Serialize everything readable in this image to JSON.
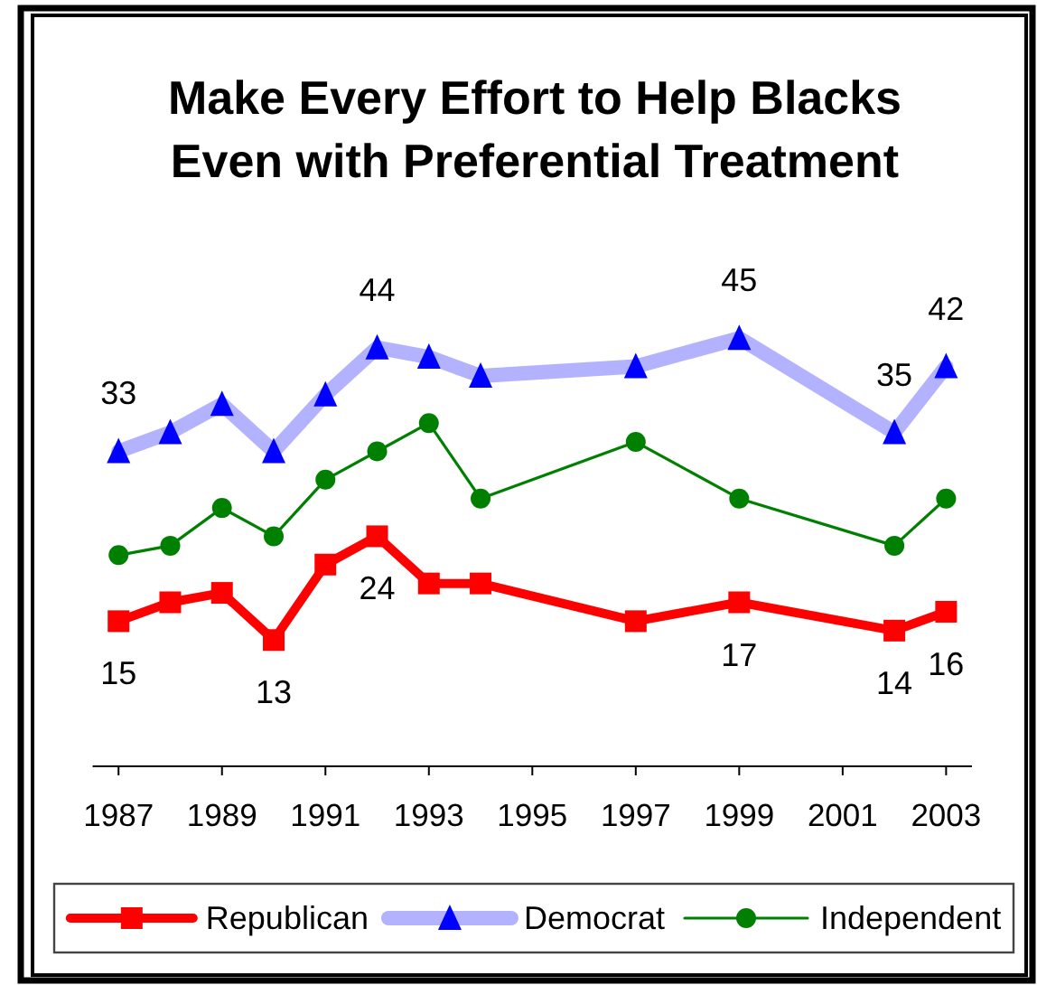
{
  "chart_data": {
    "type": "line",
    "title": "Make Every Effort to Help Blacks\nEven with Preferential Treatment",
    "x": [
      1987,
      1988,
      1989,
      1990,
      1991,
      1992,
      1993,
      1994,
      1997,
      1999,
      2002,
      2003
    ],
    "xlim": [
      1986.5,
      2003.5
    ],
    "xticks": [
      1987,
      1989,
      1991,
      1993,
      1995,
      1997,
      1999,
      2001,
      2003
    ],
    "tick_labels": "x",
    "legend": "bottom",
    "series": [
      {
        "name": "Republican",
        "color": "#ff0000",
        "marker": "square",
        "values": [
          15,
          17,
          18,
          13,
          21,
          24,
          19,
          19,
          15,
          17,
          14,
          16
        ],
        "value_labels": [
          "15",
          null,
          null,
          "13",
          null,
          "24",
          null,
          null,
          null,
          "17",
          "14",
          "16"
        ]
      },
      {
        "name": "Democrat",
        "color": "#0000ff",
        "marker": "triangle",
        "values": [
          33,
          35,
          38,
          33,
          39,
          44,
          43,
          41,
          42,
          45,
          35,
          42
        ],
        "value_labels": [
          "33",
          null,
          null,
          null,
          null,
          "44",
          null,
          null,
          null,
          "45",
          "35",
          "42"
        ]
      },
      {
        "name": "Independent",
        "color": "#008000",
        "marker": "circle",
        "values": [
          22,
          23,
          27,
          24,
          30,
          33,
          36,
          28,
          34,
          28,
          23,
          28
        ]
      }
    ]
  }
}
